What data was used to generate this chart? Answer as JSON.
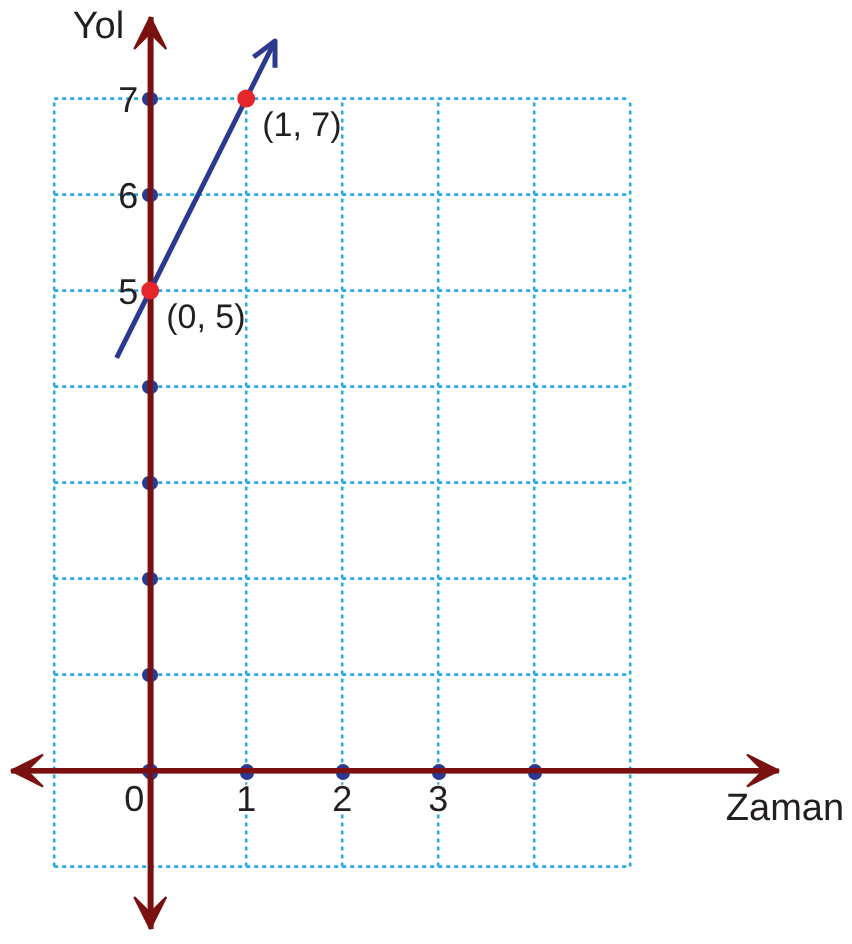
{
  "chart_data": {
    "type": "line",
    "xlabel": "Zaman",
    "ylabel": "Yol",
    "series": [
      {
        "type": "line",
        "color": "#2b3990",
        "x": [
          -0.35,
          1.3
        ],
        "values": [
          4.3,
          7.6
        ],
        "line_style": "solid"
      },
      {
        "type": "scatter",
        "color": "#e5262a",
        "x": [
          0,
          1
        ],
        "values": [
          5,
          7
        ],
        "marker": "circle"
      }
    ],
    "annotations": [
      {
        "text": "(0, 5)",
        "x": 0,
        "y": 5
      },
      {
        "text": "(1, 7)",
        "x": 1,
        "y": 7
      }
    ],
    "xlim": [
      -1.45,
      6.55
    ],
    "ylim": [
      -1.65,
      7.85
    ],
    "xticks": [
      {
        "value": -1,
        "label": null
      },
      0,
      1,
      2,
      3,
      {
        "value": 4,
        "label": null
      },
      {
        "value": 5,
        "label": null
      }
    ],
    "yticks": [
      {
        "value": -1,
        "label": null
      },
      {
        "value": 0,
        "label": null
      },
      {
        "value": 1,
        "label": null
      },
      {
        "value": 2,
        "label": null
      },
      {
        "value": 3,
        "label": null
      },
      {
        "value": 4,
        "label": null
      },
      5,
      6,
      7
    ],
    "grid": true
  }
}
